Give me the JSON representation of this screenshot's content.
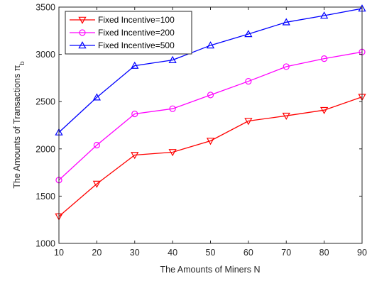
{
  "chart_data": {
    "type": "line",
    "title": "",
    "xlabel": "The Amounts of Miners N",
    "ylabel_main": "The Amounts of Transactions π",
    "ylabel_sub": "b",
    "x": [
      10,
      20,
      30,
      40,
      50,
      60,
      70,
      80,
      90
    ],
    "xlim": [
      10,
      90
    ],
    "ylim": [
      1000,
      3500
    ],
    "x_ticks": [
      10,
      20,
      30,
      40,
      50,
      60,
      70,
      80,
      90
    ],
    "y_ticks": [
      1000,
      1500,
      2000,
      2500,
      3000,
      3500
    ],
    "grid": false,
    "legend_position": "top-left",
    "series": [
      {
        "name": "Fixed Incentive=100",
        "color": "#ff0000",
        "marker": "triangle-down",
        "values": [
          1285,
          1630,
          1935,
          1965,
          2085,
          2295,
          2350,
          2410,
          2550
        ]
      },
      {
        "name": "Fixed Incentive=200",
        "color": "#ff00ff",
        "marker": "circle",
        "values": [
          1670,
          2040,
          2370,
          2425,
          2570,
          2715,
          2870,
          2955,
          3025
        ]
      },
      {
        "name": "Fixed Incentive=500",
        "color": "#0000ff",
        "marker": "triangle-up",
        "values": [
          2175,
          2545,
          2880,
          2940,
          3095,
          3215,
          3340,
          3410,
          3485
        ]
      }
    ]
  }
}
